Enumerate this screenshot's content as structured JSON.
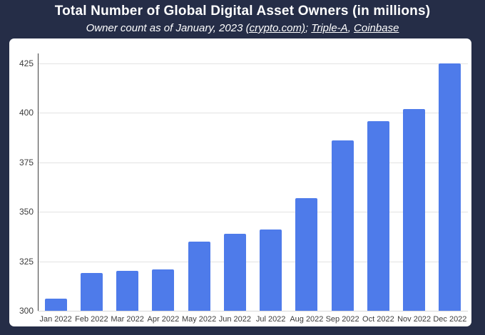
{
  "header": {
    "title": "Total Number of Global Digital Asset Owners (in millions)",
    "subtitle_prefix": "Owner count as of January, 2023 ",
    "source_link_1": "(crypto.com)",
    "subtitle_sep_1": "; ",
    "source_link_2": "Triple-A",
    "subtitle_sep_2": ", ",
    "source_link_3": "Coinbase"
  },
  "chart_data": {
    "type": "bar",
    "title": "Total Number of Global Digital Asset Owners (in millions)",
    "subtitle": "Owner count as of January, 2023 (crypto.com); Triple-A, Coinbase",
    "categories": [
      "Jan 2022",
      "Feb 2022",
      "Mar 2022",
      "Apr 2022",
      "May 2022",
      "Jun 2022",
      "Jul 2022",
      "Aug 2022",
      "Sep 2022",
      "Oct 2022",
      "Nov 2022",
      "Dec 2022"
    ],
    "values": [
      306,
      319,
      320,
      321,
      335,
      339,
      341,
      357,
      386,
      396,
      402,
      425
    ],
    "xlabel": "",
    "ylabel": "",
    "ylim": [
      300,
      425
    ],
    "yticks": [
      300,
      325,
      350,
      375,
      400,
      425
    ],
    "grid": true,
    "legend": "none",
    "bar_color": "#4E7BEA"
  },
  "colors": {
    "page_background": "#252D47",
    "panel_background": "#ffffff",
    "bar": "#4E7BEA",
    "gridline": "#e3e3e3",
    "axis_line": "#3f3f3f",
    "title_text": "#ffffff",
    "tick_text": "#3c3c3c"
  }
}
